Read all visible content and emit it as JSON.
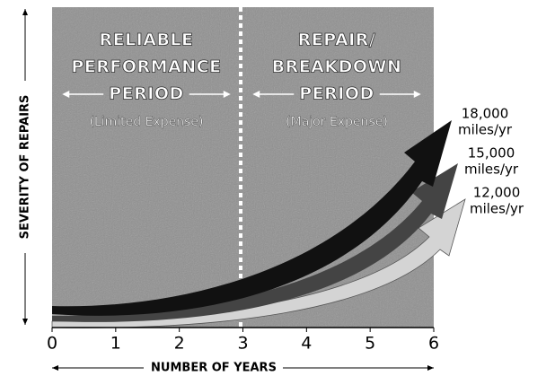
{
  "left_period": {
    "title_lines": [
      "RELIABLE",
      "PERFORMANCE",
      "PERIOD"
    ],
    "note": "(Limited Expense)"
  },
  "right_period": {
    "title_lines": [
      "REPAIR/",
      "BREAKDOWN",
      "PERIOD"
    ],
    "note": "(Major Expense)"
  },
  "x_axis": {
    "label": "NUMBER OF YEARS",
    "ticks": [
      "0",
      "1",
      "2",
      "3",
      "4",
      "5",
      "6"
    ]
  },
  "y_axis": {
    "label": "SEVERITY OF REPAIRS"
  },
  "arrows": [
    {
      "label_lines": [
        "18,000",
        "miles/yr"
      ]
    },
    {
      "label_lines": [
        "15,000",
        "miles/yr"
      ]
    },
    {
      "label_lines": [
        "12,000",
        "miles/yr"
      ]
    }
  ]
}
